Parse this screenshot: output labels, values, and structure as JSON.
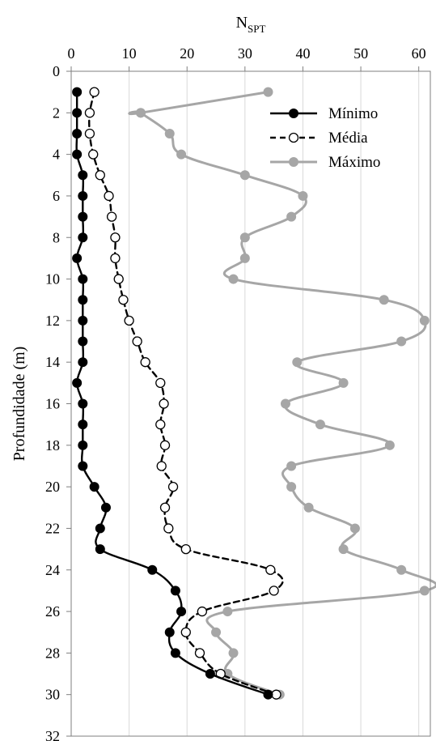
{
  "chart_data": {
    "type": "line",
    "orientation": "depth-profile",
    "title": "",
    "xlabel_main": "N",
    "xlabel_sub": "SPT",
    "ylabel": "Profundidade (m)",
    "x_axis_position": "top",
    "y_reversed": true,
    "xlim": [
      0,
      62
    ],
    "ylim": [
      0,
      32
    ],
    "xticks": [
      "0",
      "10",
      "20",
      "30",
      "40",
      "50",
      "60"
    ],
    "yticks": [
      "0",
      "2",
      "4",
      "6",
      "8",
      "10",
      "12",
      "14",
      "16",
      "18",
      "20",
      "22",
      "24",
      "26",
      "28",
      "30",
      "32"
    ],
    "grid": "vertical",
    "legend_position": "top-right",
    "series": [
      {
        "name": "Mínimo",
        "color": "#000000",
        "dash": "solid",
        "marker": "filled-circle",
        "marker_fill": "#000000",
        "points": [
          [
            1,
            1
          ],
          [
            1,
            2
          ],
          [
            1,
            3
          ],
          [
            1,
            4
          ],
          [
            2,
            5
          ],
          [
            2,
            6
          ],
          [
            2,
            7
          ],
          [
            2,
            8
          ],
          [
            1,
            9
          ],
          [
            2,
            10
          ],
          [
            2,
            11
          ],
          [
            2,
            12
          ],
          [
            2,
            13
          ],
          [
            2,
            14
          ],
          [
            1,
            15
          ],
          [
            2,
            16
          ],
          [
            2,
            17
          ],
          [
            2,
            18
          ],
          [
            2,
            19
          ],
          [
            4,
            20
          ],
          [
            6,
            21
          ],
          [
            5,
            22
          ],
          [
            5,
            23
          ],
          [
            14,
            24
          ],
          [
            18,
            25
          ],
          [
            19,
            26
          ],
          [
            17,
            27
          ],
          [
            18,
            28
          ],
          [
            24,
            29
          ],
          [
            34,
            30
          ]
        ]
      },
      {
        "name": "Média",
        "color": "#000000",
        "dash": "dashed",
        "marker": "open-circle",
        "marker_fill": "#ffffff",
        "points": [
          [
            4,
            1
          ],
          [
            3.2,
            2
          ],
          [
            3.2,
            3
          ],
          [
            3.8,
            4
          ],
          [
            5,
            5
          ],
          [
            6.5,
            6
          ],
          [
            7,
            7
          ],
          [
            7.6,
            8
          ],
          [
            7.6,
            9
          ],
          [
            8.2,
            10
          ],
          [
            9,
            11
          ],
          [
            10,
            12
          ],
          [
            11.4,
            13
          ],
          [
            12.8,
            14
          ],
          [
            15.4,
            15
          ],
          [
            16,
            16
          ],
          [
            15.4,
            17
          ],
          [
            16.2,
            18
          ],
          [
            15.6,
            19
          ],
          [
            17.6,
            20
          ],
          [
            16.2,
            21
          ],
          [
            16.8,
            22
          ],
          [
            19.8,
            23
          ],
          [
            34.4,
            24
          ],
          [
            35,
            25
          ],
          [
            22.6,
            26
          ],
          [
            19.8,
            27
          ],
          [
            22.2,
            28
          ],
          [
            25.8,
            29
          ],
          [
            35.4,
            30
          ]
        ]
      },
      {
        "name": "Máximo",
        "color": "#a6a6a6",
        "dash": "solid",
        "marker": "filled-circle",
        "marker_fill": "#a6a6a6",
        "points": [
          [
            34,
            1
          ],
          [
            12,
            2
          ],
          [
            12,
            2
          ],
          [
            17,
            3
          ],
          [
            19,
            4
          ],
          [
            30,
            5
          ],
          [
            40,
            6
          ],
          [
            38,
            7
          ],
          [
            30,
            8
          ],
          [
            30,
            9
          ],
          [
            28,
            10
          ],
          [
            54,
            11
          ],
          [
            61,
            12
          ],
          [
            57,
            13
          ],
          [
            39,
            14
          ],
          [
            47,
            15
          ],
          [
            37,
            16
          ],
          [
            43,
            17
          ],
          [
            55,
            18
          ],
          [
            38,
            19
          ],
          [
            38,
            20
          ],
          [
            41,
            21
          ],
          [
            49,
            22
          ],
          [
            47,
            23
          ],
          [
            57,
            24
          ],
          [
            61,
            25
          ],
          [
            27,
            26
          ],
          [
            25,
            27
          ],
          [
            28,
            28
          ],
          [
            27,
            29
          ],
          [
            36,
            30
          ]
        ]
      }
    ]
  }
}
